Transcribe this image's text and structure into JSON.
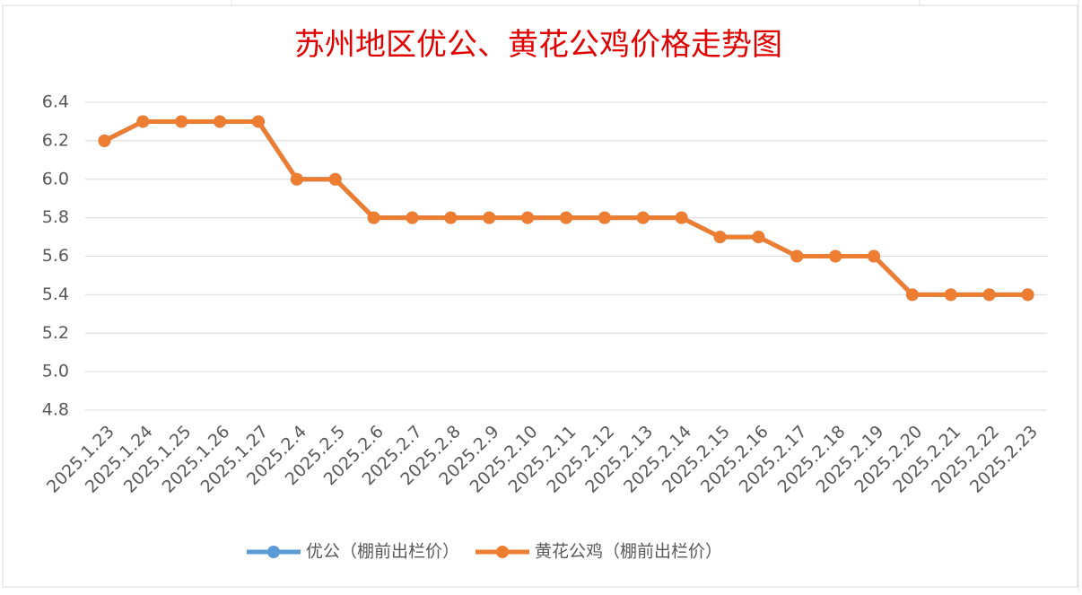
{
  "chart_data": {
    "type": "line",
    "title": "苏州地区优公、黄花公鸡价格走势图",
    "categories": [
      "2025.1.23",
      "2025.1.24",
      "2025.1.25",
      "2025.1.26",
      "2025.1.27",
      "2025.2.4",
      "2025.2.5",
      "2025.2.6",
      "2025.2.7",
      "2025.2.8",
      "2025.2.9",
      "2025.2.10",
      "2025.2.11",
      "2025.2.12",
      "2025.2.13",
      "2025.2.14",
      "2025.2.15",
      "2025.2.16",
      "2025.2.17",
      "2025.2.18",
      "2025.2.19",
      "2025.2.20",
      "2025.2.21",
      "2025.2.22",
      "2025.2.23"
    ],
    "series": [
      {
        "name": "优公（棚前出栏价）",
        "color": "#5b9bd5",
        "values": [
          6.2,
          6.3,
          6.3,
          6.3,
          6.3,
          6.0,
          6.0,
          5.8,
          5.8,
          5.8,
          5.8,
          5.8,
          5.8,
          5.8,
          5.8,
          5.8,
          5.7,
          5.7,
          5.6,
          5.6,
          5.6,
          5.4,
          5.4,
          5.4,
          5.4
        ]
      },
      {
        "name": "黄花公鸡（棚前出栏价）",
        "color": "#ed7d31",
        "values": [
          6.2,
          6.3,
          6.3,
          6.3,
          6.3,
          6.0,
          6.0,
          5.8,
          5.8,
          5.8,
          5.8,
          5.8,
          5.8,
          5.8,
          5.8,
          5.8,
          5.7,
          5.7,
          5.6,
          5.6,
          5.6,
          5.4,
          5.4,
          5.4,
          5.4
        ]
      }
    ],
    "ylim": [
      4.8,
      6.4
    ],
    "yticks": [
      6.4,
      6.2,
      {
        "value": 6,
        "label": "6.0"
      },
      5.8,
      5.6,
      5.4,
      5.2,
      {
        "value": 5,
        "label": "5.0"
      },
      4.8
    ],
    "grid": true,
    "legend": "bottom"
  }
}
